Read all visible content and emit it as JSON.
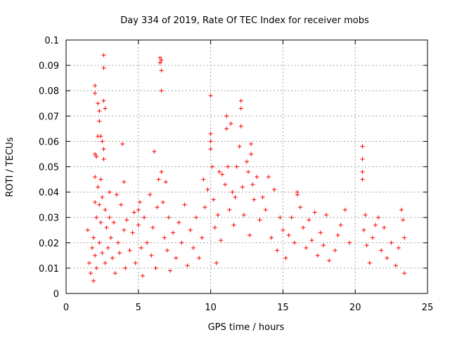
{
  "chart_data": {
    "type": "scatter",
    "title": "Day 334 of 2019, Rate Of TEC Index for receiver mobs",
    "xlabel": "GPS time / hours",
    "ylabel": "ROTI / TECUs",
    "xlim": [
      0,
      25
    ],
    "ylim": [
      0,
      0.1
    ],
    "xticks": [
      0,
      5,
      10,
      15,
      20,
      25
    ],
    "xtick_labels": [
      "0",
      "5",
      "10",
      "15",
      "20",
      "25"
    ],
    "yticks": [
      0,
      0.01,
      0.02,
      0.03,
      0.04,
      0.05,
      0.06,
      0.07,
      0.08,
      0.09,
      0.1
    ],
    "ytick_labels": [
      "0",
      "0.01",
      "0.02",
      "0.03",
      "0.04",
      "0.05",
      "0.06",
      "0.07",
      "0.08",
      "0.09",
      "0.1"
    ],
    "grid": true,
    "marker": "plus",
    "color": "#ff0000",
    "series": [
      {
        "name": "ROTI",
        "points": [
          [
            1.5,
            0.025
          ],
          [
            1.6,
            0.012
          ],
          [
            1.7,
            0.008
          ],
          [
            1.8,
            0.018
          ],
          [
            1.9,
            0.022
          ],
          [
            1.9,
            0.005
          ],
          [
            2.0,
            0.082
          ],
          [
            2.0,
            0.079
          ],
          [
            2.0,
            0.055
          ],
          [
            2.0,
            0.046
          ],
          [
            2.0,
            0.036
          ],
          [
            2.0,
            0.015
          ],
          [
            2.1,
            0.054
          ],
          [
            2.1,
            0.03
          ],
          [
            2.1,
            0.01
          ],
          [
            2.2,
            0.075
          ],
          [
            2.2,
            0.062
          ],
          [
            2.2,
            0.042
          ],
          [
            2.3,
            0.072
          ],
          [
            2.3,
            0.068
          ],
          [
            2.3,
            0.035
          ],
          [
            2.3,
            0.02
          ],
          [
            2.4,
            0.062
          ],
          [
            2.4,
            0.045
          ],
          [
            2.4,
            0.028
          ],
          [
            2.5,
            0.06
          ],
          [
            2.5,
            0.038
          ],
          [
            2.5,
            0.016
          ],
          [
            2.6,
            0.094
          ],
          [
            2.6,
            0.089
          ],
          [
            2.6,
            0.076
          ],
          [
            2.6,
            0.057
          ],
          [
            2.6,
            0.053
          ],
          [
            2.7,
            0.073
          ],
          [
            2.7,
            0.033
          ],
          [
            2.7,
            0.012
          ],
          [
            2.8,
            0.026
          ],
          [
            2.9,
            0.018
          ],
          [
            3.0,
            0.04
          ],
          [
            3.0,
            0.03
          ],
          [
            3.1,
            0.022
          ],
          [
            3.2,
            0.014
          ],
          [
            3.3,
            0.028
          ],
          [
            3.4,
            0.008
          ],
          [
            3.5,
            0.039
          ],
          [
            3.6,
            0.02
          ],
          [
            3.7,
            0.016
          ],
          [
            3.8,
            0.035
          ],
          [
            3.9,
            0.059
          ],
          [
            4.0,
            0.044
          ],
          [
            4.0,
            0.025
          ],
          [
            4.1,
            0.01
          ],
          [
            4.2,
            0.029
          ],
          [
            4.4,
            0.017
          ],
          [
            4.6,
            0.024
          ],
          [
            4.7,
            0.032
          ],
          [
            4.8,
            0.012
          ],
          [
            5.0,
            0.033
          ],
          [
            5.0,
            0.027
          ],
          [
            5.1,
            0.036
          ],
          [
            5.2,
            0.018
          ],
          [
            5.3,
            0.007
          ],
          [
            5.4,
            0.03
          ],
          [
            5.6,
            0.02
          ],
          [
            5.8,
            0.039
          ],
          [
            5.9,
            0.015
          ],
          [
            6.0,
            0.026
          ],
          [
            6.1,
            0.056
          ],
          [
            6.2,
            0.01
          ],
          [
            6.3,
            0.034
          ],
          [
            6.4,
            0.045
          ],
          [
            6.5,
            0.093
          ],
          [
            6.5,
            0.091
          ],
          [
            6.6,
            0.092
          ],
          [
            6.6,
            0.088
          ],
          [
            6.6,
            0.08
          ],
          [
            6.6,
            0.048
          ],
          [
            6.7,
            0.036
          ],
          [
            6.8,
            0.022
          ],
          [
            6.9,
            0.044
          ],
          [
            7.0,
            0.017
          ],
          [
            7.1,
            0.03
          ],
          [
            7.2,
            0.009
          ],
          [
            7.4,
            0.024
          ],
          [
            7.6,
            0.014
          ],
          [
            7.8,
            0.028
          ],
          [
            8.0,
            0.02
          ],
          [
            8.2,
            0.035
          ],
          [
            8.4,
            0.011
          ],
          [
            8.6,
            0.025
          ],
          [
            8.8,
            0.018
          ],
          [
            9.0,
            0.03
          ],
          [
            9.2,
            0.014
          ],
          [
            9.4,
            0.022
          ],
          [
            9.5,
            0.045
          ],
          [
            9.6,
            0.034
          ],
          [
            9.8,
            0.041
          ],
          [
            10.0,
            0.078
          ],
          [
            10.0,
            0.063
          ],
          [
            10.0,
            0.06
          ],
          [
            10.0,
            0.057
          ],
          [
            10.1,
            0.05
          ],
          [
            10.2,
            0.037
          ],
          [
            10.3,
            0.026
          ],
          [
            10.4,
            0.012
          ],
          [
            10.5,
            0.031
          ],
          [
            10.6,
            0.048
          ],
          [
            10.7,
            0.021
          ],
          [
            10.8,
            0.047
          ],
          [
            11.0,
            0.043
          ],
          [
            11.1,
            0.07
          ],
          [
            11.1,
            0.065
          ],
          [
            11.2,
            0.05
          ],
          [
            11.3,
            0.033
          ],
          [
            11.4,
            0.067
          ],
          [
            11.5,
            0.04
          ],
          [
            11.6,
            0.027
          ],
          [
            11.7,
            0.038
          ],
          [
            11.8,
            0.05
          ],
          [
            12.0,
            0.058
          ],
          [
            12.1,
            0.076
          ],
          [
            12.1,
            0.073
          ],
          [
            12.1,
            0.066
          ],
          [
            12.2,
            0.042
          ],
          [
            12.3,
            0.031
          ],
          [
            12.5,
            0.052
          ],
          [
            12.6,
            0.048
          ],
          [
            12.7,
            0.023
          ],
          [
            12.8,
            0.059
          ],
          [
            12.8,
            0.055
          ],
          [
            12.9,
            0.043
          ],
          [
            13.0,
            0.037
          ],
          [
            13.2,
            0.046
          ],
          [
            13.4,
            0.029
          ],
          [
            13.6,
            0.038
          ],
          [
            13.8,
            0.033
          ],
          [
            14.0,
            0.046
          ],
          [
            14.2,
            0.022
          ],
          [
            14.4,
            0.041
          ],
          [
            14.6,
            0.017
          ],
          [
            14.8,
            0.03
          ],
          [
            15.0,
            0.025
          ],
          [
            15.2,
            0.014
          ],
          [
            15.4,
            0.023
          ],
          [
            15.6,
            0.03
          ],
          [
            15.8,
            0.02
          ],
          [
            16.0,
            0.04
          ],
          [
            16.0,
            0.039
          ],
          [
            16.2,
            0.034
          ],
          [
            16.4,
            0.026
          ],
          [
            16.6,
            0.018
          ],
          [
            16.8,
            0.029
          ],
          [
            17.0,
            0.021
          ],
          [
            17.2,
            0.032
          ],
          [
            17.4,
            0.015
          ],
          [
            17.6,
            0.024
          ],
          [
            17.8,
            0.019
          ],
          [
            18.0,
            0.031
          ],
          [
            18.2,
            0.013
          ],
          [
            18.6,
            0.017
          ],
          [
            18.8,
            0.023
          ],
          [
            19.0,
            0.027
          ],
          [
            19.3,
            0.033
          ],
          [
            19.6,
            0.02
          ],
          [
            20.5,
            0.058
          ],
          [
            20.5,
            0.053
          ],
          [
            20.5,
            0.048
          ],
          [
            20.5,
            0.045
          ],
          [
            20.6,
            0.025
          ],
          [
            20.7,
            0.031
          ],
          [
            20.8,
            0.019
          ],
          [
            21.0,
            0.012
          ],
          [
            21.2,
            0.022
          ],
          [
            21.4,
            0.027
          ],
          [
            21.6,
            0.03
          ],
          [
            21.8,
            0.017
          ],
          [
            22.0,
            0.026
          ],
          [
            22.2,
            0.014
          ],
          [
            22.5,
            0.02
          ],
          [
            22.8,
            0.011
          ],
          [
            23.0,
            0.018
          ],
          [
            23.2,
            0.033
          ],
          [
            23.3,
            0.029
          ],
          [
            23.4,
            0.022
          ],
          [
            23.4,
            0.008
          ]
        ]
      }
    ]
  }
}
